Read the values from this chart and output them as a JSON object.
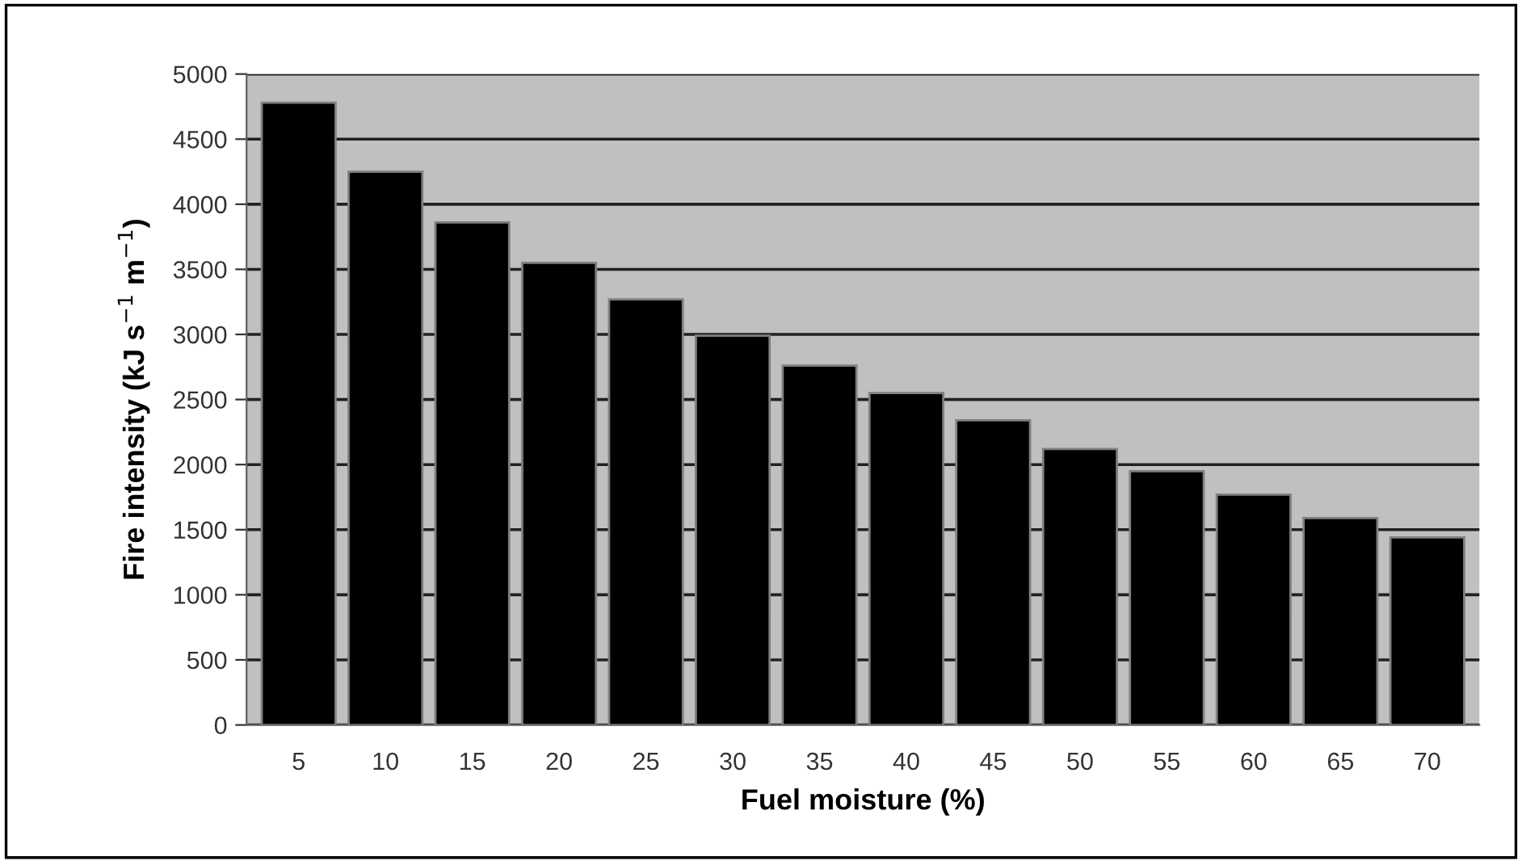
{
  "chart_data": {
    "type": "bar",
    "xlabel": "Fuel moisture (%)",
    "ylabel": "Fire intensity (kJ s$^{−1}$ m$^{−1}$)",
    "categories": [
      "5",
      "10",
      "15",
      "20",
      "25",
      "30",
      "35",
      "40",
      "45",
      "50",
      "55",
      "60",
      "65",
      "70"
    ],
    "values": [
      4780,
      4250,
      3860,
      3550,
      3270,
      2990,
      2760,
      2550,
      2340,
      2120,
      1950,
      1770,
      1590,
      1440
    ],
    "color": "#000000",
    "ylim": [
      0,
      5000
    ],
    "yticks": [
      0,
      500,
      1000,
      1500,
      2000,
      2500,
      3000,
      3500,
      4000,
      4500,
      5000
    ],
    "grid": "y"
  }
}
